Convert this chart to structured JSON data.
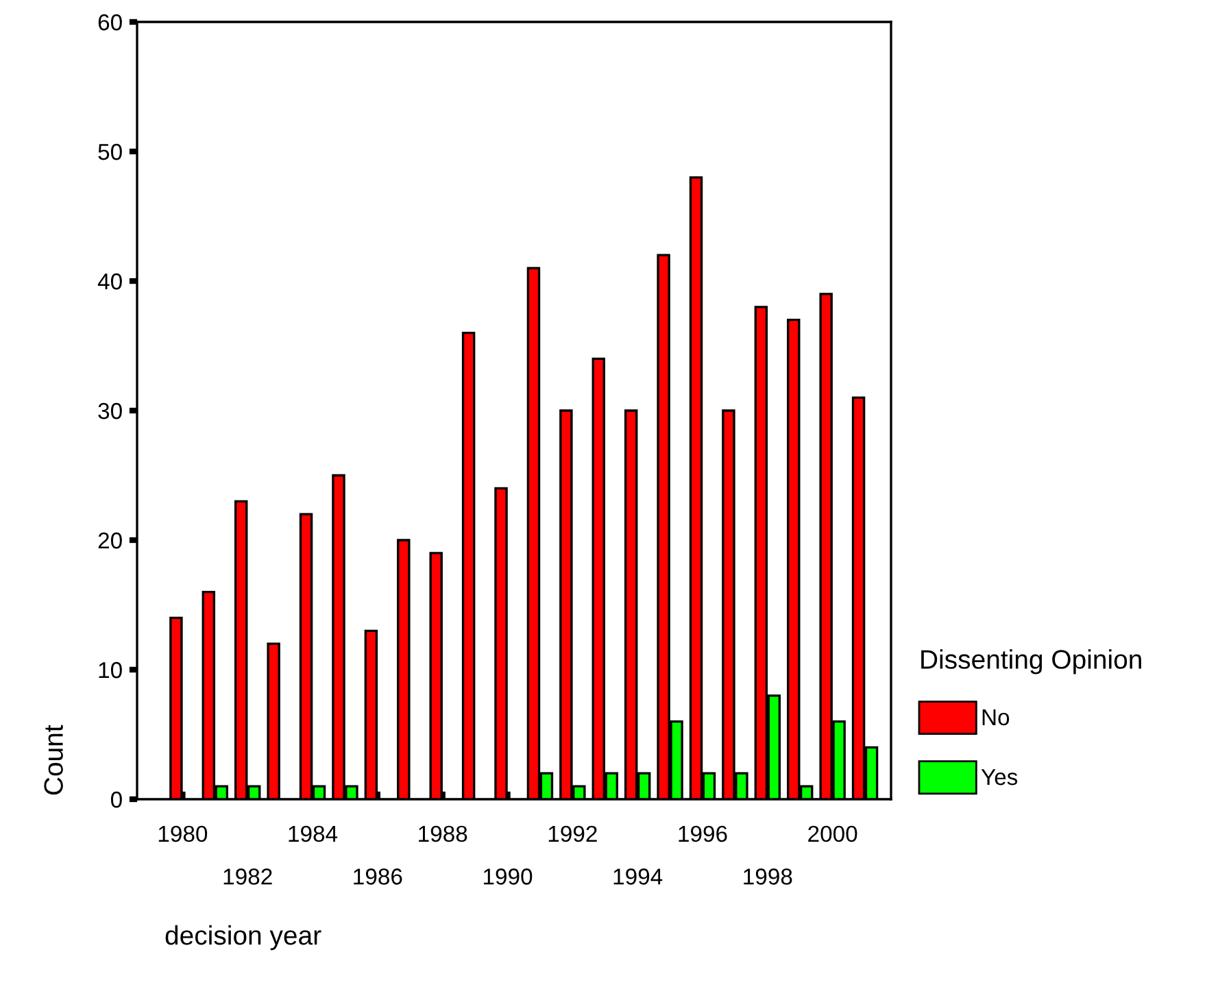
{
  "chart_data": {
    "type": "bar",
    "categories": [
      "1980",
      null,
      "1982",
      null,
      "1984",
      null,
      "1986",
      null,
      "1988",
      null,
      "1990",
      null,
      "1992",
      null,
      "1994",
      null,
      "1996",
      null,
      "1998",
      null,
      "2000",
      null
    ],
    "series": [
      {
        "name": "No",
        "color": "#ff0000",
        "values": [
          14,
          16,
          23,
          12,
          22,
          25,
          13,
          20,
          19,
          36,
          24,
          41,
          30,
          34,
          30,
          42,
          48,
          30,
          38,
          37,
          39,
          31
        ]
      },
      {
        "name": "Yes",
        "color": "#00ff00",
        "values": [
          null,
          1,
          1,
          null,
          1,
          1,
          null,
          null,
          null,
          null,
          null,
          2,
          1,
          2,
          2,
          6,
          2,
          2,
          8,
          1,
          6,
          4
        ]
      }
    ],
    "xlabel": "decision year",
    "ylabel": "Count",
    "legend_title": "Dissenting Opinion",
    "ylim": [
      0,
      60
    ],
    "yticks": [
      0,
      10,
      20,
      30,
      40,
      50,
      60
    ],
    "grid": false,
    "legend": "right"
  }
}
